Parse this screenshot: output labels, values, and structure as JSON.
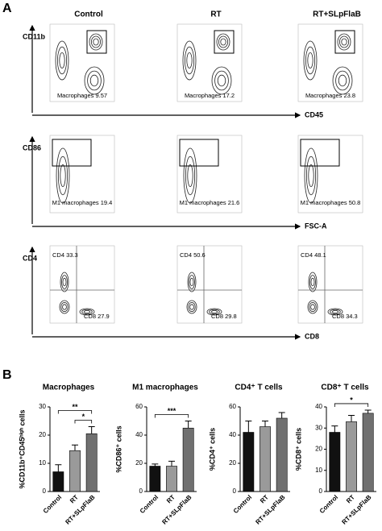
{
  "panel_labels": [
    "A",
    "B"
  ],
  "flow": {
    "columns": [
      "Control",
      "RT",
      "RT+SLpFlaB"
    ],
    "rows": [
      {
        "y_label": "CD11b",
        "x_label": "CD45",
        "gates": [
          [
            "Macrophages 9.57"
          ],
          [
            "Macrophages 17.2"
          ],
          [
            "Macrophages 23.8"
          ]
        ]
      },
      {
        "y_label": "CD86",
        "x_label": "FSC-A",
        "gates": [
          [
            "M1 macrophages 19.4"
          ],
          [
            "M1 macrophages 21.6"
          ],
          [
            "M1 macrophages 50.8"
          ]
        ]
      },
      {
        "y_label": "CD4",
        "x_label": "CD8",
        "gates": [
          [
            "CD4 33.3",
            "CD8 27.9"
          ],
          [
            "CD4 50.6",
            "CD8 29.8"
          ],
          [
            "CD4 48.1",
            "CD8 34.3"
          ]
        ]
      }
    ]
  },
  "chart_data": [
    {
      "type": "bar",
      "title": "Macrophages",
      "y_label": "%CD11b⁺CD45ʰⁱᵍʰ cells",
      "categories": [
        "Control",
        "RT",
        "RT+SLpFlaB"
      ],
      "values": [
        7,
        14.5,
        20.5
      ],
      "errors": [
        2.5,
        2,
        2.5
      ],
      "colors": [
        "#111111",
        "#9a9a9a",
        "#707070"
      ],
      "ylim": [
        0,
        30
      ],
      "yticks": [
        0,
        10,
        20,
        30
      ],
      "significance": [
        {
          "text": "**",
          "between": [
            "Control",
            "RT+SLpFlaB"
          ]
        },
        {
          "text": "*",
          "between": [
            "RT",
            "RT+SLpFlaB"
          ]
        }
      ]
    },
    {
      "type": "bar",
      "title": "M1 macrophages",
      "y_label": "%CD86⁺ cells",
      "categories": [
        "Control",
        "RT",
        "RT+SLpFlaB"
      ],
      "values": [
        18,
        18,
        45
      ],
      "errors": [
        1.5,
        3.5,
        5
      ],
      "colors": [
        "#111111",
        "#9a9a9a",
        "#707070"
      ],
      "ylim": [
        0,
        60
      ],
      "yticks": [
        0,
        20,
        40,
        60
      ],
      "significance": [
        {
          "text": "***",
          "between": [
            "Control",
            "RT+SLpFlaB"
          ]
        }
      ]
    },
    {
      "type": "bar",
      "title": "CD4⁺ T cells",
      "y_label": "%CD4⁺ cells",
      "categories": [
        "Control",
        "RT",
        "RT+SLpFlaB"
      ],
      "values": [
        42,
        46,
        52
      ],
      "errors": [
        8,
        4,
        4
      ],
      "colors": [
        "#111111",
        "#9a9a9a",
        "#707070"
      ],
      "ylim": [
        0,
        60
      ],
      "yticks": [
        0,
        20,
        40,
        60
      ],
      "significance": []
    },
    {
      "type": "bar",
      "title": "CD8⁺ T cells",
      "y_label": "%CD8⁺ cells",
      "categories": [
        "Control",
        "RT",
        "RT+SLpFlaB"
      ],
      "values": [
        28,
        33,
        37
      ],
      "errors": [
        3,
        3,
        1.5
      ],
      "colors": [
        "#111111",
        "#9a9a9a",
        "#707070"
      ],
      "ylim": [
        0,
        40
      ],
      "yticks": [
        0,
        10,
        20,
        30,
        40
      ],
      "significance": [
        {
          "text": "*",
          "between": [
            "Control",
            "RT+SLpFlaB"
          ]
        }
      ]
    }
  ]
}
